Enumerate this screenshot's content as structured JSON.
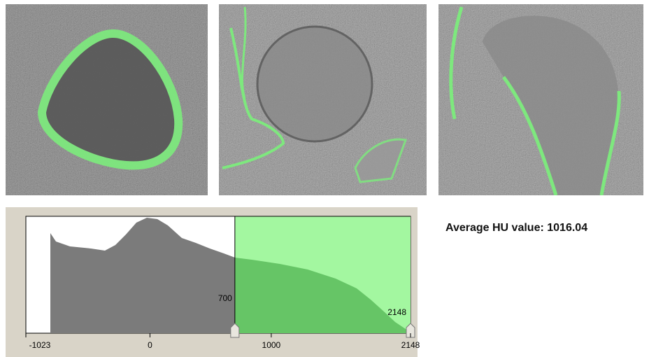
{
  "histogram": {
    "xlim": [
      -1023,
      2148
    ],
    "xticks": [
      -1023,
      0,
      1000,
      2148
    ],
    "threshold": {
      "lower": 700,
      "upper": 2148
    }
  },
  "summary": {
    "label": "Average HU value:",
    "value": 1016.04
  }
}
